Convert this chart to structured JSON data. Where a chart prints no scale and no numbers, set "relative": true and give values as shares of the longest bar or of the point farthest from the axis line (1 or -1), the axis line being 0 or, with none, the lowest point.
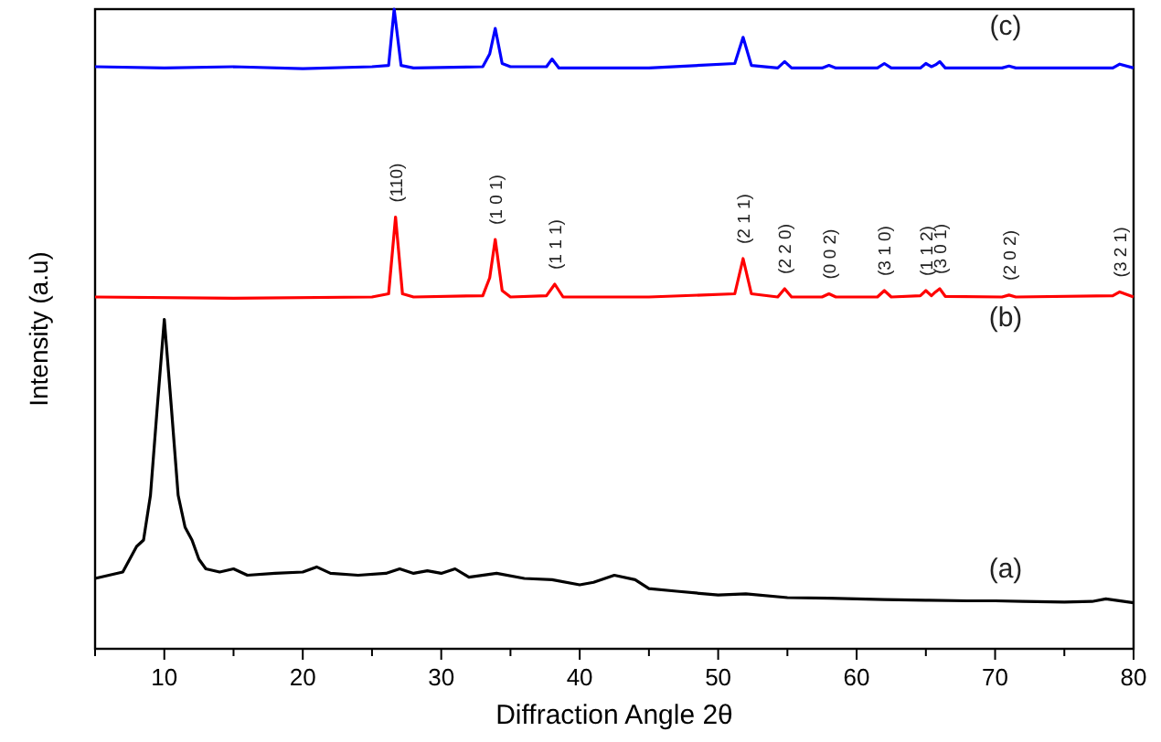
{
  "chart_data": {
    "type": "line",
    "relative": true,
    "xlabel": "Diffraction Angle 2θ",
    "ylabel": "Intensity (a.u)",
    "xlim": [
      5,
      80
    ],
    "xticks": [
      {
        "value": 5,
        "label": null
      },
      10,
      {
        "value": 15,
        "label": null
      },
      20,
      {
        "value": 25,
        "label": null
      },
      30,
      {
        "value": 35,
        "label": null
      },
      40,
      {
        "value": 45,
        "label": null
      },
      50,
      {
        "value": 55,
        "label": null
      },
      60,
      {
        "value": 65,
        "label": null
      },
      70,
      {
        "value": 75,
        "label": null
      },
      80
    ],
    "grid": false,
    "marker": "none",
    "line_style": "solid",
    "series": [
      {
        "name": "(a)",
        "color": "#000000",
        "x": [
          5,
          6,
          7,
          7.5,
          8,
          8.5,
          9,
          9.5,
          10,
          10.5,
          11,
          11.5,
          12,
          12.5,
          13,
          14,
          15,
          16,
          18,
          20,
          21,
          22,
          24,
          26,
          27,
          28,
          29,
          30,
          31,
          32,
          34,
          36,
          38,
          40,
          41,
          42.5,
          44,
          45,
          47,
          50,
          52,
          55,
          58,
          60,
          62,
          65,
          68,
          70,
          72,
          75,
          77,
          78,
          80
        ],
        "values": [
          0.11,
          0.115,
          0.12,
          0.14,
          0.16,
          0.17,
          0.24,
          0.38,
          0.515,
          0.38,
          0.24,
          0.19,
          0.17,
          0.14,
          0.125,
          0.12,
          0.125,
          0.115,
          0.118,
          0.12,
          0.128,
          0.118,
          0.115,
          0.118,
          0.125,
          0.118,
          0.122,
          0.118,
          0.125,
          0.112,
          0.118,
          0.11,
          0.108,
          0.1,
          0.104,
          0.115,
          0.108,
          0.094,
          0.09,
          0.084,
          0.086,
          0.08,
          0.079,
          0.078,
          0.077,
          0.076,
          0.075,
          0.075,
          0.074,
          0.073,
          0.074,
          0.078,
          0.072
        ]
      },
      {
        "name": "(b)",
        "color": "#ff0000",
        "x": [
          5,
          15,
          25,
          26.2,
          26.7,
          27.2,
          28,
          33,
          33.5,
          33.9,
          34.4,
          35,
          37.6,
          38.2,
          38.8,
          45,
          51.2,
          51.8,
          52.4,
          54.3,
          54.8,
          55.3,
          57.5,
          58,
          58.5,
          61.5,
          62,
          62.5,
          64.6,
          65,
          65.4,
          65.7,
          66,
          66.4,
          70.5,
          71,
          71.5,
          78.5,
          79,
          80
        ],
        "values": [
          0.55,
          0.548,
          0.55,
          0.555,
          0.675,
          0.555,
          0.55,
          0.552,
          0.58,
          0.64,
          0.56,
          0.55,
          0.552,
          0.57,
          0.55,
          0.55,
          0.555,
          0.61,
          0.555,
          0.55,
          0.563,
          0.55,
          0.55,
          0.555,
          0.55,
          0.55,
          0.56,
          0.55,
          0.552,
          0.56,
          0.552,
          0.558,
          0.563,
          0.551,
          0.55,
          0.553,
          0.55,
          0.552,
          0.558,
          0.55
        ]
      },
      {
        "name": "(c)",
        "color": "#0000ff",
        "x": [
          5,
          10,
          15,
          20,
          25,
          26.2,
          26.6,
          27.1,
          28,
          33,
          33.5,
          33.9,
          34.4,
          35,
          37.6,
          38,
          38.5,
          45,
          51.2,
          51.8,
          52.4,
          54.3,
          54.8,
          55.3,
          57.5,
          58,
          58.5,
          61.5,
          62,
          62.5,
          64.6,
          65,
          65.4,
          65.7,
          66,
          66.4,
          70.5,
          71,
          71.5,
          78.5,
          79,
          80
        ],
        "values": [
          0.91,
          0.908,
          0.91,
          0.907,
          0.91,
          0.912,
          1,
          0.912,
          0.908,
          0.91,
          0.93,
          0.97,
          0.915,
          0.91,
          0.91,
          0.922,
          0.908,
          0.908,
          0.915,
          0.956,
          0.912,
          0.908,
          0.918,
          0.908,
          0.908,
          0.912,
          0.908,
          0.908,
          0.915,
          0.908,
          0.908,
          0.915,
          0.91,
          0.913,
          0.918,
          0.908,
          0.908,
          0.911,
          0.908,
          0.908,
          0.914,
          0.908
        ]
      }
    ],
    "annotations": [
      {
        "text": "(110)",
        "x": 26.7,
        "y": 0.675
      },
      {
        "text": "(1 0 1)",
        "x": 33.9,
        "y": 0.64
      },
      {
        "text": "(1 1 1)",
        "x": 38.2,
        "y": 0.57
      },
      {
        "text": "(2 1 1)",
        "x": 51.8,
        "y": 0.61
      },
      {
        "text": "(2 2 0)",
        "x": 54.8,
        "y": 0.563
      },
      {
        "text": "(0 0 2)",
        "x": 58,
        "y": 0.555
      },
      {
        "text": "(3 1 0)",
        "x": 62,
        "y": 0.56
      },
      {
        "text": "(1 1 2)",
        "x": 65,
        "y": 0.56
      },
      {
        "text": "(3 0 1)",
        "x": 66,
        "y": 0.563
      },
      {
        "text": "(2 0 2)",
        "x": 71,
        "y": 0.553
      },
      {
        "text": "(3 2 1)",
        "x": 79,
        "y": 0.558
      }
    ]
  }
}
